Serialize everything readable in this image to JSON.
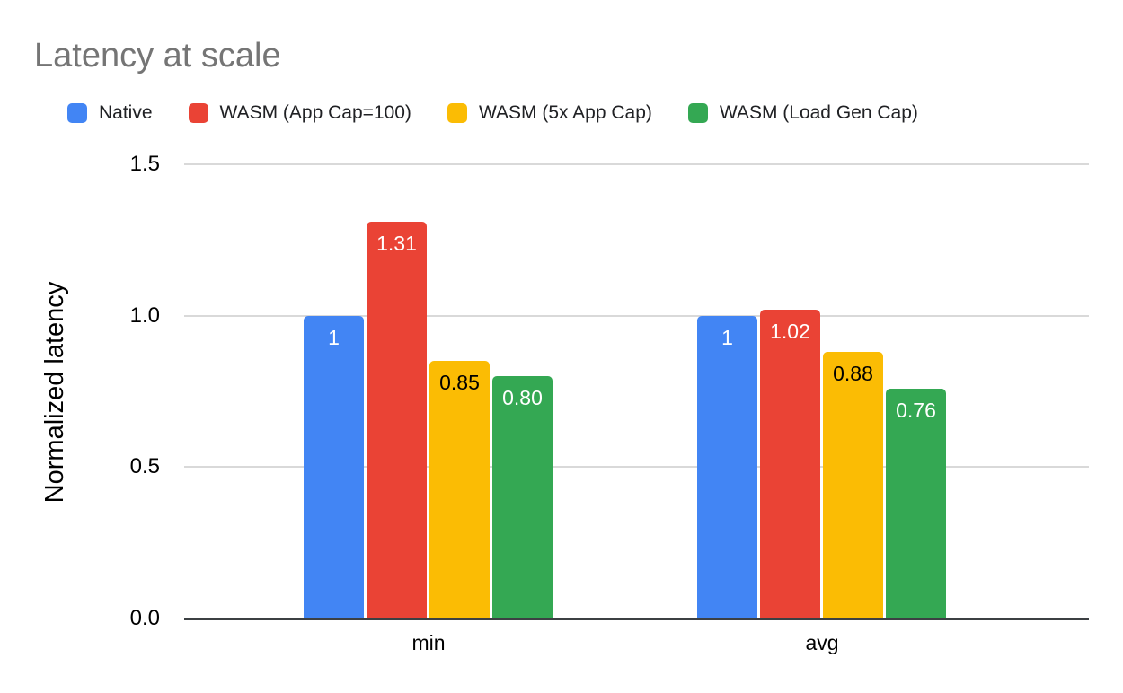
{
  "title": "Latency at scale",
  "legend": [
    {
      "label": "Native",
      "color": "#4285f4"
    },
    {
      "label": "WASM (App Cap=100)",
      "color": "#ea4335"
    },
    {
      "label": "WASM (5x App Cap)",
      "color": "#fbbc04"
    },
    {
      "label": "WASM (Load Gen Cap)",
      "color": "#34a853"
    }
  ],
  "chart_data": {
    "type": "bar",
    "title": "Latency at scale",
    "categories": [
      "min",
      "avg"
    ],
    "series": [
      {
        "name": "Native",
        "color": "#4285f4",
        "values": [
          1,
          1
        ],
        "labels": [
          "1",
          "1"
        ],
        "label_color": "#ffffff"
      },
      {
        "name": "WASM (App Cap=100)",
        "color": "#ea4335",
        "values": [
          1.31,
          1.02
        ],
        "labels": [
          "1.31",
          "1.02"
        ],
        "label_color": "#ffffff"
      },
      {
        "name": "WASM (5x App Cap)",
        "color": "#fbbc04",
        "values": [
          0.85,
          0.88
        ],
        "labels": [
          "0.85",
          "0.88"
        ],
        "label_color": "#000000"
      },
      {
        "name": "WASM (Load Gen Cap)",
        "color": "#34a853",
        "values": [
          0.8,
          0.76
        ],
        "labels": [
          "0.80",
          "0.76"
        ],
        "label_color": "#ffffff"
      }
    ],
    "xlabel": "",
    "ylabel": "Normalized latency",
    "ylim": [
      0,
      1.5
    ],
    "yticks": [
      "0.0",
      "0.5",
      "1.0",
      "1.5"
    ],
    "grid": true,
    "legend_position": "top",
    "gridline_color": "#d9d9d9",
    "baseline_color": "#3c4043",
    "title_color": "#757575"
  }
}
